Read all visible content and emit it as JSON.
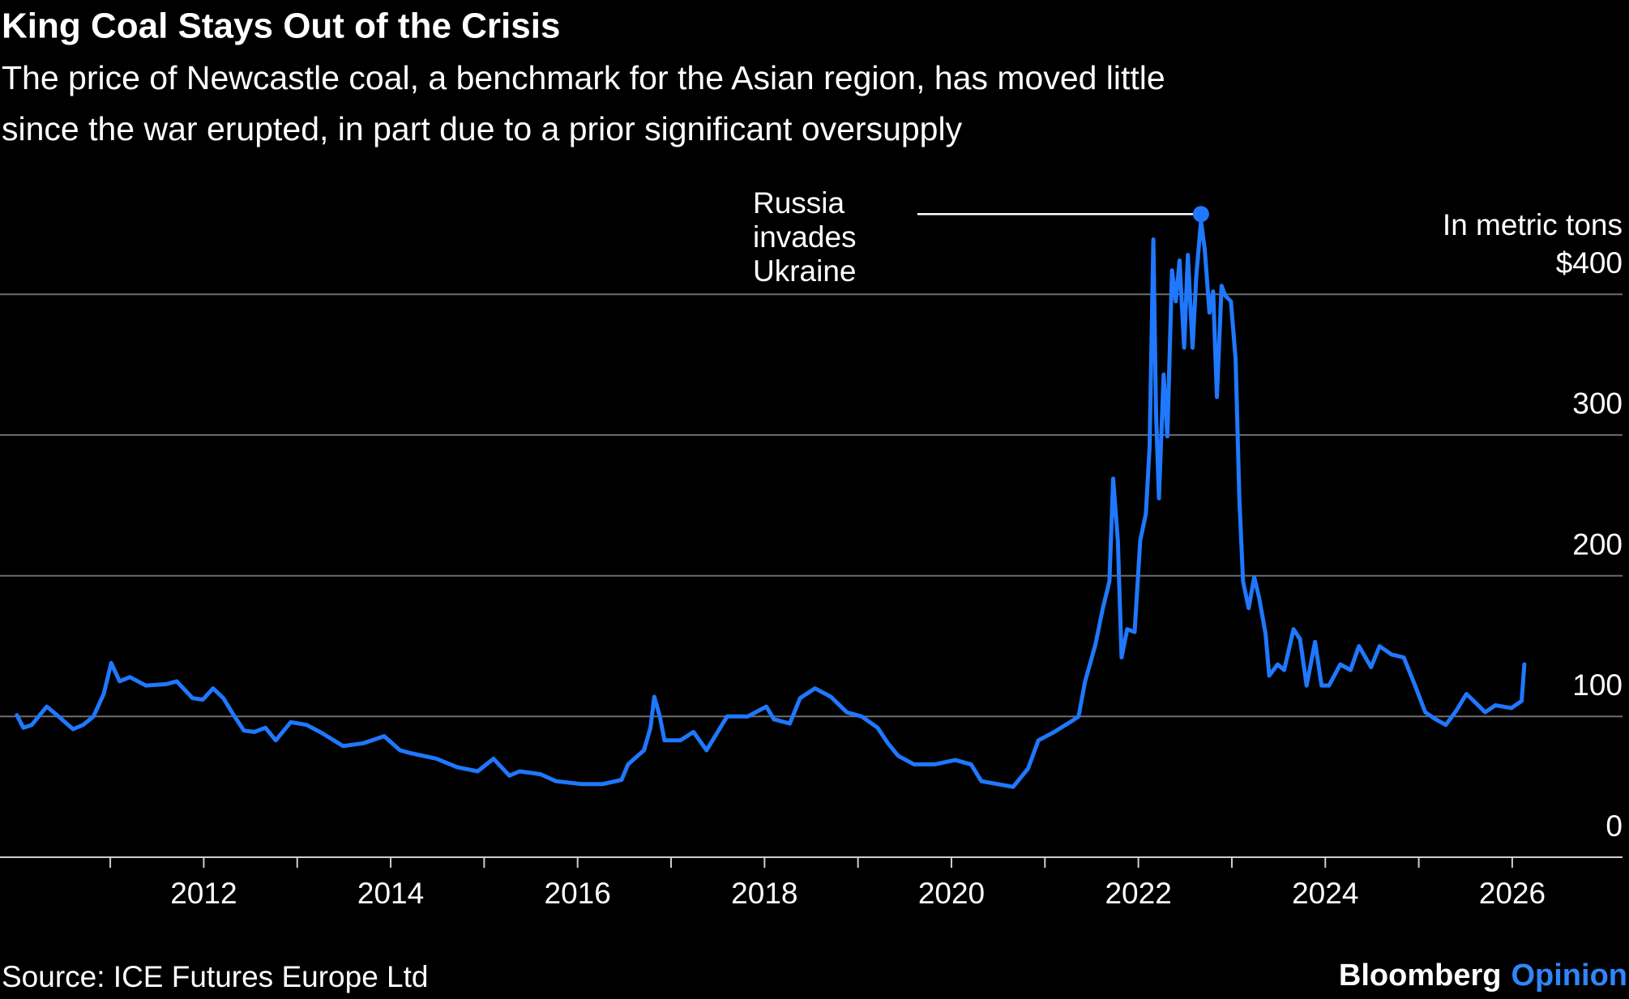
{
  "chart_data": {
    "type": "line",
    "title": "King Coal Stays Out of the Crisis",
    "subtitle": [
      "The price of Newcastle coal, a benchmark for the Asian region, has moved little",
      "since the war erupted, in part due to a prior significant oversupply"
    ],
    "unit_label": "In metric tons",
    "source": "Source: ICE Futures Europe Ltd",
    "brand": "Bloomberg",
    "brand_product": "Opinion",
    "color": "#1f78ff",
    "grid": true,
    "xlim": [
      2009.82,
      2027.18
    ],
    "xticks": [
      2012,
      2014,
      2016,
      2018,
      2020,
      2022,
      2024,
      2026
    ],
    "xminorticks": [
      2011,
      2013,
      2015,
      2017,
      2019,
      2021,
      2023,
      2025
    ],
    "ylim": [
      0,
      460
    ],
    "yticks": [
      0,
      100,
      200,
      300,
      {
        "value": 400,
        "label": "$400"
      }
    ],
    "annotation": {
      "lines": [
        "Russia",
        "invades",
        "Ukraine"
      ],
      "x": 2022.67,
      "y": 457
    },
    "x": [
      2010.0,
      2010.07,
      2010.16,
      2010.32,
      2010.43,
      2010.6,
      2010.71,
      2010.82,
      2010.93,
      2011.01,
      2011.1,
      2011.21,
      2011.38,
      2011.6,
      2011.71,
      2011.88,
      2011.99,
      2012.1,
      2012.21,
      2012.32,
      2012.43,
      2012.54,
      2012.66,
      2012.77,
      2012.93,
      2013.1,
      2013.27,
      2013.49,
      2013.71,
      2013.93,
      2014.1,
      2014.21,
      2014.49,
      2014.71,
      2014.93,
      2015.1,
      2015.27,
      2015.38,
      2015.6,
      2015.77,
      2016.04,
      2016.27,
      2016.47,
      2016.54,
      2016.71,
      2016.78,
      2016.82,
      2016.88,
      2016.93,
      2017.1,
      2017.24,
      2017.38,
      2017.49,
      2017.6,
      2017.82,
      2018.02,
      2018.1,
      2018.27,
      2018.38,
      2018.54,
      2018.71,
      2018.88,
      2019.04,
      2019.21,
      2019.32,
      2019.43,
      2019.6,
      2019.82,
      2020.04,
      2020.21,
      2020.32,
      2020.49,
      2020.66,
      2020.82,
      2020.93,
      2021.1,
      2021.27,
      2021.36,
      2021.43,
      2021.54,
      2021.62,
      2021.69,
      2021.73,
      2021.78,
      2021.82,
      2021.88,
      2021.96,
      2022.02,
      2022.08,
      2022.12,
      2022.16,
      2022.19,
      2022.22,
      2022.27,
      2022.31,
      2022.36,
      2022.4,
      2022.44,
      2022.49,
      2022.53,
      2022.58,
      2022.62,
      2022.67,
      2022.71,
      2022.76,
      2022.8,
      2022.84,
      2022.89,
      2022.93,
      2022.99,
      2023.04,
      2023.08,
      2023.12,
      2023.18,
      2023.24,
      2023.29,
      2023.36,
      2023.4,
      2023.49,
      2023.56,
      2023.66,
      2023.73,
      2023.8,
      2023.89,
      2023.96,
      2024.04,
      2024.16,
      2024.27,
      2024.36,
      2024.49,
      2024.58,
      2024.71,
      2024.84,
      2024.96,
      2025.07,
      2025.18,
      2025.29,
      2025.4,
      2025.51,
      2025.62,
      2025.71,
      2025.82,
      2025.99,
      2026.1,
      2026.13
    ],
    "values": [
      101,
      92,
      94,
      107,
      101,
      91,
      94,
      100,
      116,
      138,
      125,
      128,
      122,
      123,
      125,
      113,
      112,
      120,
      113,
      101,
      90,
      89,
      92,
      83,
      96,
      94,
      88,
      79,
      81,
      86,
      76,
      74,
      70,
      64,
      61,
      70,
      58,
      61,
      59,
      54,
      52,
      52,
      55,
      66,
      76,
      92,
      114,
      100,
      83,
      83,
      89,
      76,
      88,
      100,
      100,
      107,
      98,
      95,
      113,
      120,
      114,
      103,
      100,
      92,
      81,
      72,
      66,
      66,
      69,
      66,
      54,
      52,
      50,
      63,
      83,
      89,
      96,
      100,
      125,
      151,
      177,
      196,
      269,
      225,
      142,
      162,
      160,
      225,
      244,
      292,
      439,
      314,
      255,
      343,
      299,
      417,
      395,
      424,
      362,
      428,
      362,
      413,
      452,
      432,
      387,
      402,
      327,
      406,
      399,
      395,
      354,
      255,
      196,
      177,
      199,
      185,
      159,
      129,
      137,
      133,
      162,
      155,
      122,
      153,
      122,
      122,
      137,
      133,
      150,
      135,
      150,
      144,
      142,
      122,
      103,
      98,
      94,
      104,
      116,
      109,
      103,
      108,
      106,
      111,
      137
    ]
  }
}
